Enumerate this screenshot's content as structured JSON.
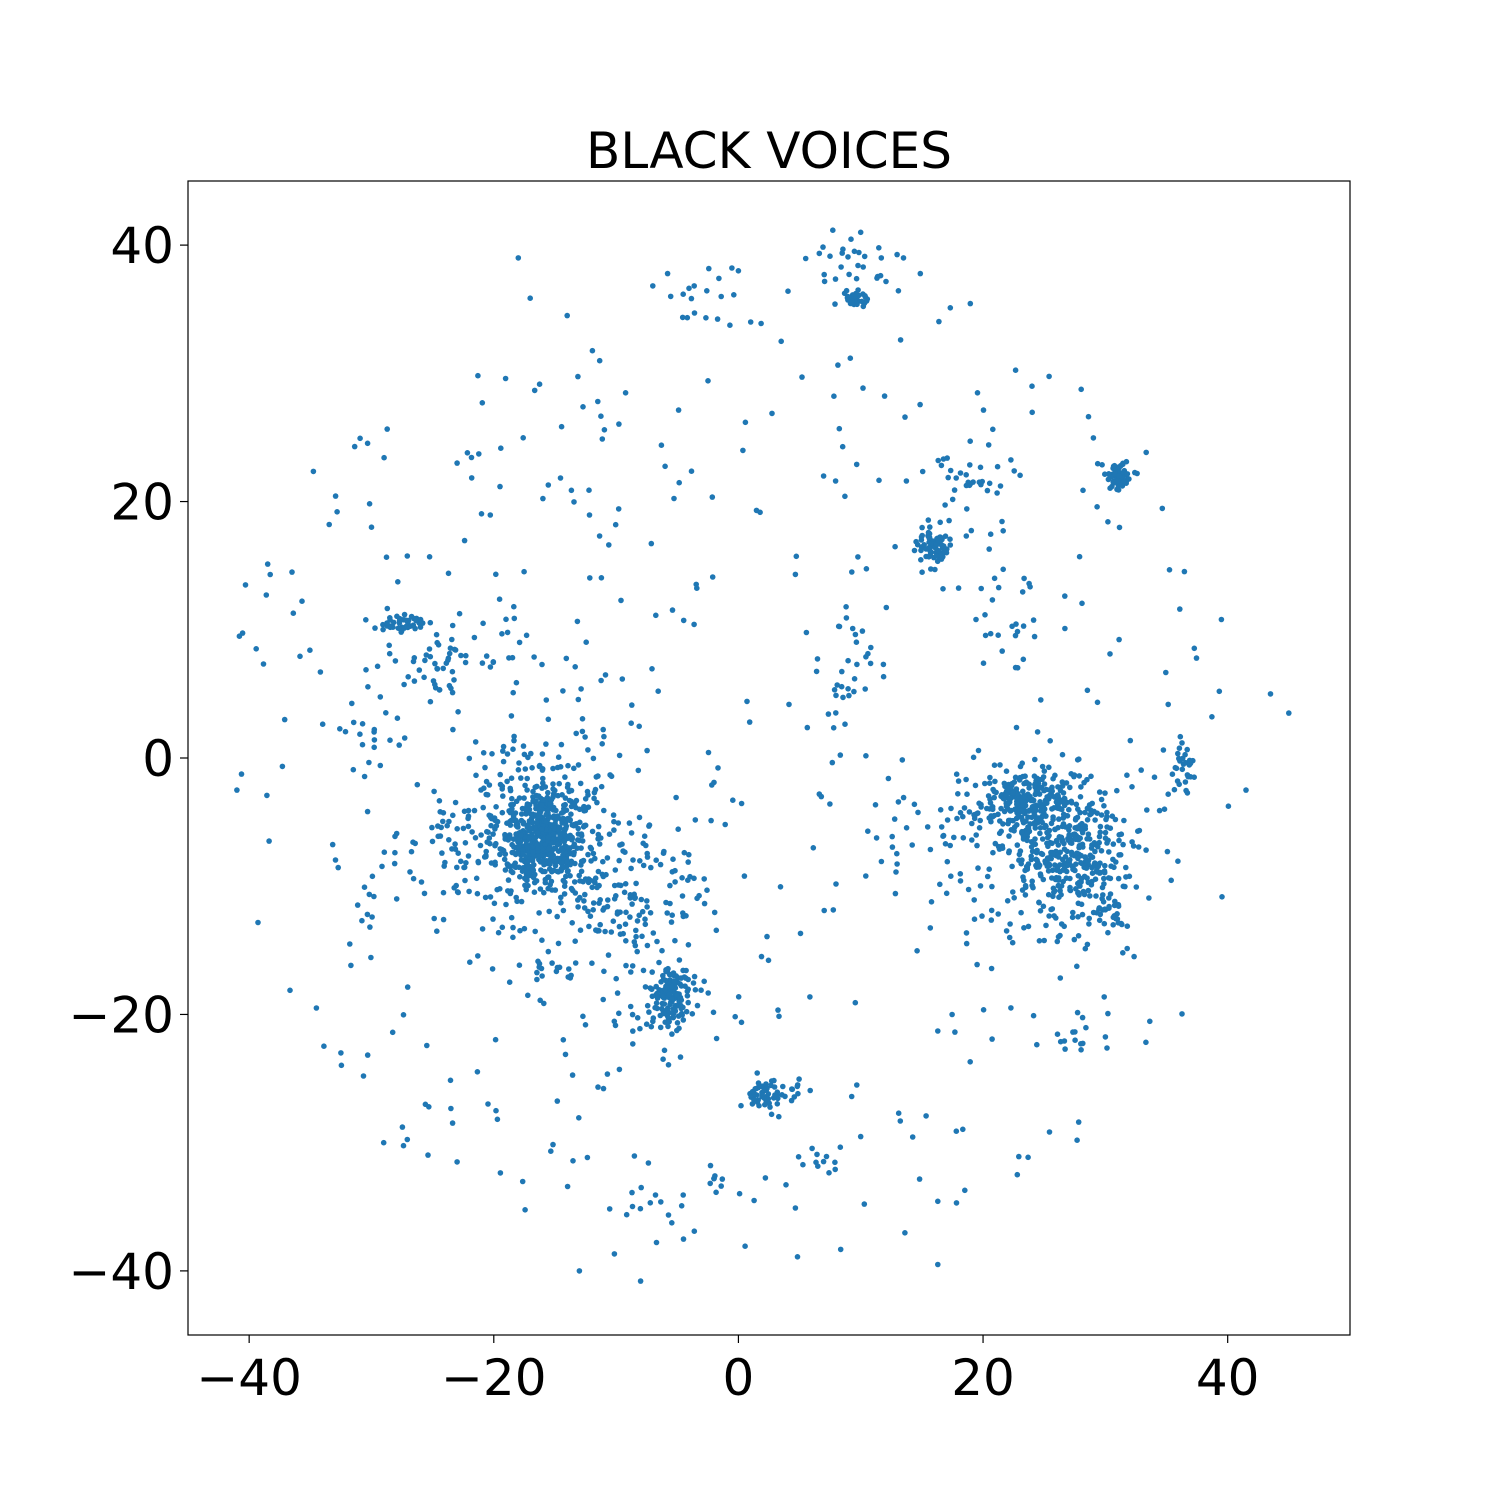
{
  "chart_data": {
    "type": "scatter",
    "title": "BLACK VOICES",
    "xlabel": "",
    "ylabel": "",
    "xlim": [
      -45,
      50
    ],
    "ylim": [
      -45,
      45
    ],
    "grid": false,
    "legend": "none",
    "marker_color": "#1f77b4",
    "xticks": [
      -40,
      -20,
      0,
      20,
      40
    ],
    "yticks": [
      -40,
      -20,
      0,
      20,
      40
    ],
    "xtick_labels": [
      "−40",
      "−20",
      "0",
      "20",
      "40"
    ],
    "ytick_labels": [
      "−40",
      "−20",
      "0",
      "20",
      "40"
    ],
    "clusters": [
      {
        "cx": -16,
        "cy": -6,
        "sx": 1.8,
        "sy": 2.0,
        "n": 520
      },
      {
        "cx": -15,
        "cy": -6,
        "sx": 4.5,
        "sy": 4.0,
        "n": 260
      },
      {
        "cx": 23.5,
        "cy": -3.5,
        "sx": 2.0,
        "sy": 1.2,
        "n": 240
      },
      {
        "cx": 27.5,
        "cy": -7.5,
        "sx": 2.0,
        "sy": 2.0,
        "n": 220
      },
      {
        "cx": 26,
        "cy": -8,
        "sx": 3.8,
        "sy": 4.0,
        "n": 210
      },
      {
        "cx": -5.5,
        "cy": -18.5,
        "sx": 0.8,
        "sy": 1.0,
        "n": 140
      },
      {
        "cx": -6,
        "cy": -19,
        "sx": 2.5,
        "sy": 2.5,
        "n": 40
      },
      {
        "cx": 31,
        "cy": 22,
        "sx": 0.6,
        "sy": 0.6,
        "n": 60
      },
      {
        "cx": 16,
        "cy": 16.5,
        "sx": 0.8,
        "sy": 0.8,
        "n": 70
      },
      {
        "cx": 9.5,
        "cy": 35.8,
        "sx": 0.5,
        "sy": 0.4,
        "n": 35
      },
      {
        "cx": 9,
        "cy": 38.5,
        "sx": 2.5,
        "sy": 1.3,
        "n": 30
      },
      {
        "cx": 2,
        "cy": -26.5,
        "sx": 0.6,
        "sy": 0.5,
        "n": 35
      },
      {
        "cx": 3.5,
        "cy": -26.5,
        "sx": 1.5,
        "sy": 1.2,
        "n": 25
      },
      {
        "cx": -27.5,
        "cy": 10.5,
        "sx": 1.3,
        "sy": 0.4,
        "n": 45
      },
      {
        "cx": -24.5,
        "cy": 7.5,
        "sx": 1.5,
        "sy": 1.0,
        "n": 30
      },
      {
        "cx": -10.5,
        "cy": -12.5,
        "sx": 2.0,
        "sy": 1.5,
        "n": 55
      },
      {
        "cx": -6,
        "cy": -10,
        "sx": 2.5,
        "sy": 2.0,
        "n": 35
      },
      {
        "cx": 36.5,
        "cy": -0.5,
        "sx": 0.6,
        "sy": 1.4,
        "n": 30
      },
      {
        "cx": 30.5,
        "cy": -12,
        "sx": 0.6,
        "sy": 0.5,
        "n": 25
      },
      {
        "cx": 19,
        "cy": 21.5,
        "sx": 2.0,
        "sy": 2.0,
        "n": 35
      },
      {
        "cx": 22,
        "cy": 12,
        "sx": 2.0,
        "sy": 3.0,
        "n": 30
      },
      {
        "cx": 8.5,
        "cy": 6,
        "sx": 1.5,
        "sy": 3.0,
        "n": 30
      },
      {
        "cx": 18,
        "cy": -6,
        "sx": 3.0,
        "sy": 2.5,
        "n": 45
      },
      {
        "cx": -22,
        "cy": -8,
        "sx": 3.0,
        "sy": 2.5,
        "n": 50
      },
      {
        "cx": -20,
        "cy": 8,
        "sx": 4.0,
        "sy": 3.0,
        "n": 40
      },
      {
        "cx": -15,
        "cy": -16.5,
        "sx": 2.0,
        "sy": 0.4,
        "n": 18
      },
      {
        "cx": -30,
        "cy": -11,
        "sx": 1.0,
        "sy": 1.0,
        "n": 10
      },
      {
        "cx": -31,
        "cy": 1,
        "sx": 1.5,
        "sy": 3.0,
        "n": 22
      },
      {
        "cx": 27,
        "cy": -22,
        "sx": 2.0,
        "sy": 0.4,
        "n": 15
      },
      {
        "cx": -4,
        "cy": 36,
        "sx": 1.5,
        "sy": 1.2,
        "n": 12
      },
      {
        "cx": 6,
        "cy": -31.5,
        "sx": 0.8,
        "sy": 0.5,
        "n": 10
      },
      {
        "cx": -7.5,
        "cy": -35,
        "sx": 2.0,
        "sy": 1.5,
        "n": 14
      },
      {
        "cx": -2,
        "cy": -33.5,
        "sx": 0.5,
        "sy": 1.0,
        "n": 8
      }
    ],
    "scatter_spread": {
      "n": 420,
      "radius": 42
    },
    "notable_points": [
      [
        -18,
        39
      ],
      [
        -14,
        34.5
      ],
      [
        43.5,
        5
      ],
      [
        45,
        3.5
      ],
      [
        41.5,
        -2.5
      ],
      [
        -29,
        -30
      ],
      [
        -23,
        -31.5
      ],
      [
        -34.5,
        -19.5
      ],
      [
        -32.5,
        -23
      ],
      [
        22.8,
        -32.5
      ],
      [
        -13,
        -40
      ],
      [
        -8,
        -40.8
      ],
      [
        16.3,
        -39.5
      ],
      [
        -41,
        -2.5
      ],
      [
        -40.8,
        9.5
      ],
      [
        -40.3,
        13.5
      ],
      [
        -36.5,
        14.5
      ],
      [
        -30,
        18
      ],
      [
        -23,
        23
      ],
      [
        1,
        34
      ],
      [
        0,
        38
      ],
      [
        3.5,
        32.5
      ],
      [
        10,
        41
      ],
      [
        13.5,
        39
      ],
      [
        24,
        29
      ]
    ]
  }
}
